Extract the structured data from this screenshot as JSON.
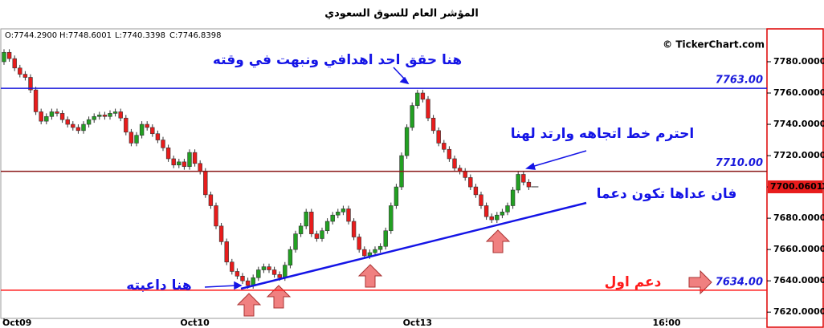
{
  "chart_data": {
    "type": "candlestick",
    "title": "المؤشر العام للسوق السعودي",
    "ohlc_info": [
      "O:7744.2900",
      "H:7748.6001",
      "L:7740.3398",
      "C:7746.8398"
    ],
    "copyright": "© TickerChart.com",
    "categories": [
      "Oct09",
      null,
      null,
      null,
      null,
      null,
      null,
      null,
      null,
      null,
      null,
      null,
      null,
      null,
      null,
      null,
      null,
      null,
      null,
      null,
      null,
      null,
      null,
      null,
      null,
      null,
      null,
      null,
      null,
      null,
      null,
      null,
      null,
      null,
      null,
      null,
      "Oct10",
      null,
      null,
      null,
      null,
      null,
      null,
      null,
      null,
      null,
      null,
      null,
      null,
      null,
      null,
      null,
      null,
      null,
      null,
      null,
      null,
      null,
      null,
      null,
      null,
      null,
      null,
      null,
      null,
      null,
      null,
      null,
      null,
      null,
      null,
      null,
      null,
      null,
      null,
      null,
      null,
      null,
      "Oct13",
      null,
      null,
      null,
      null,
      null,
      null,
      null,
      null,
      null,
      null,
      null,
      null,
      null,
      null,
      null,
      null,
      null,
      null,
      null,
      null,
      null,
      null,
      null,
      null,
      null,
      null,
      null,
      null,
      null,
      null,
      null,
      null,
      null,
      null,
      null,
      null,
      null,
      null,
      null,
      null,
      null,
      null,
      null,
      null,
      null,
      null,
      "16:00"
    ],
    "open": [
      7780,
      7786,
      7782,
      7776,
      7772,
      7770,
      7762,
      7748,
      7742,
      7745,
      7748,
      7747,
      7743,
      7740,
      7738,
      7736,
      7740,
      7743,
      7745,
      7746,
      7745,
      7747,
      7748,
      7744,
      7735,
      7728,
      7733,
      7740,
      7738,
      7734,
      7730,
      7725,
      7718,
      7714,
      7716,
      7713,
      7722,
      7715,
      7710,
      7695,
      7688,
      7675,
      7665,
      7652,
      7646,
      7643,
      7640,
      7637,
      7642,
      7647,
      7649,
      7647,
      7644,
      7642,
      7650,
      7660,
      7670,
      7675,
      7684,
      7670,
      7667,
      7672,
      7678,
      7682,
      7684,
      7686,
      7678,
      7668,
      7660,
      7656,
      7658,
      7660,
      7662,
      7672,
      7688,
      7700,
      7720,
      7738,
      7752,
      7760,
      7756,
      7744,
      7736,
      7728,
      7724,
      7718,
      7712,
      7710,
      7706,
      7700,
      7695,
      7688,
      7681,
      7679,
      7682,
      7684,
      7688,
      7698,
      7708,
      7703,
      null,
      null,
      null,
      null,
      null,
      null,
      null,
      null,
      null,
      null,
      null,
      null,
      null,
      null,
      null,
      null,
      null,
      null,
      null,
      null,
      null,
      null,
      null,
      null,
      null,
      null
    ],
    "high": [
      7788,
      7788,
      7784,
      7778,
      7774,
      7772,
      7764,
      7750,
      7747,
      7750,
      7750,
      7749,
      7745,
      7742,
      7740,
      7742,
      7745,
      7747,
      7748,
      7748,
      7749,
      7750,
      7750,
      7746,
      7737,
      7735,
      7742,
      7742,
      7740,
      7736,
      7732,
      7727,
      7720,
      7718,
      7718,
      7724,
      7724,
      7717,
      7712,
      7697,
      7690,
      7677,
      7667,
      7654,
      7648,
      7645,
      7642,
      7644,
      7649,
      7651,
      7651,
      7649,
      7646,
      7652,
      7662,
      7672,
      7677,
      7686,
      7686,
      7672,
      7674,
      7680,
      7684,
      7686,
      7688,
      7688,
      7680,
      7670,
      7662,
      7660,
      7662,
      7664,
      7674,
      7690,
      7702,
      7722,
      7740,
      7754,
      7762,
      7762,
      7758,
      7746,
      7738,
      7730,
      7726,
      7720,
      7714,
      7712,
      7708,
      7702,
      7697,
      7690,
      7683,
      7684,
      7686,
      7690,
      7700,
      7710,
      7710,
      7705,
      null,
      null,
      null,
      null,
      null,
      null,
      null,
      null,
      null,
      null,
      null,
      null,
      null,
      null,
      null,
      null,
      null,
      null,
      null,
      null,
      null,
      null,
      null,
      null,
      null,
      null
    ],
    "low": [
      7778,
      7780,
      7774,
      7770,
      7768,
      7760,
      7746,
      7740,
      7740,
      7743,
      7745,
      7741,
      7738,
      7736,
      7734,
      7734,
      7738,
      7741,
      7743,
      7743,
      7743,
      7745,
      7742,
      7733,
      7726,
      7726,
      7731,
      7736,
      7732,
      7728,
      7723,
      7716,
      7712,
      7712,
      7711,
      7711,
      7713,
      7708,
      7693,
      7686,
      7673,
      7663,
      7650,
      7644,
      7641,
      7638,
      7635,
      7635,
      7640,
      7645,
      7645,
      7642,
      7640,
      7640,
      7648,
      7658,
      7668,
      7673,
      7668,
      7665,
      7665,
      7670,
      7676,
      7680,
      7682,
      7676,
      7666,
      7658,
      7654,
      7654,
      7656,
      7658,
      7660,
      7670,
      7686,
      7698,
      7718,
      7736,
      7750,
      7754,
      7742,
      7734,
      7726,
      7722,
      7716,
      7710,
      7708,
      7704,
      7698,
      7693,
      7686,
      7679,
      7677,
      7677,
      7680,
      7682,
      7686,
      7696,
      7701,
      7698,
      null,
      null,
      null,
      null,
      null,
      null,
      null,
      null,
      null,
      null,
      null,
      null,
      null,
      null,
      null,
      null,
      null,
      null,
      null,
      null,
      null,
      null,
      null,
      null,
      null,
      null
    ],
    "close": [
      7786,
      7782,
      7776,
      7772,
      7770,
      7762,
      7748,
      7742,
      7745,
      7748,
      7747,
      7743,
      7740,
      7738,
      7736,
      7740,
      7743,
      7745,
      7746,
      7745,
      7747,
      7748,
      7744,
      7735,
      7728,
      7733,
      7740,
      7738,
      7734,
      7730,
      7725,
      7718,
      7714,
      7716,
      7713,
      7722,
      7715,
      7710,
      7695,
      7688,
      7675,
      7665,
      7652,
      7646,
      7643,
      7640,
      7637,
      7642,
      7647,
      7649,
      7647,
      7644,
      7642,
      7650,
      7660,
      7670,
      7675,
      7684,
      7670,
      7667,
      7672,
      7678,
      7682,
      7684,
      7686,
      7678,
      7668,
      7660,
      7656,
      7658,
      7660,
      7662,
      7672,
      7688,
      7700,
      7720,
      7738,
      7752,
      7760,
      7756,
      7744,
      7736,
      7728,
      7724,
      7718,
      7712,
      7710,
      7706,
      7700,
      7695,
      7688,
      7681,
      7679,
      7682,
      7684,
      7688,
      7698,
      7708,
      7703,
      7700,
      null,
      null,
      null,
      null,
      null,
      null,
      null,
      null,
      null,
      null,
      null,
      null,
      null,
      null,
      null,
      null,
      null,
      null,
      null,
      null,
      null,
      null,
      null,
      null,
      null,
      null
    ],
    "up_color": "#22a022",
    "down_color": "#e81c1c",
    "ylim": [
      7616,
      7801
    ],
    "yticks": [
      {
        "value": 7620,
        "label": "7620.0000"
      },
      {
        "value": 7640,
        "label": "7640.0000"
      },
      {
        "value": 7660,
        "label": "7660.0000"
      },
      {
        "value": 7680,
        "label": "7680.0000"
      },
      {
        "value": 7700,
        "label": "7700.0000"
      },
      {
        "value": 7720,
        "label": "7720.0000"
      },
      {
        "value": 7740,
        "label": "7740.0000"
      },
      {
        "value": 7760,
        "label": "7760.0000"
      },
      {
        "value": 7780,
        "label": "7780.0000"
      }
    ],
    "levels": [
      {
        "value": 7763,
        "label": "7763.00",
        "color": "#1a1adc"
      },
      {
        "value": 7710,
        "label": "7710.00",
        "color": "#8b1a1a"
      },
      {
        "value": 7634,
        "label": "7634.00",
        "color": "#ff1a1a"
      }
    ],
    "last_price": 7700.0601,
    "annotations": [
      "هنا حقق احد اهدافي ونبهت في وقته",
      "احترم خط اتجاهه وارتد لهنا",
      "فان عداها تكون دعما",
      "هنا داعبته",
      "دعم اول"
    ]
  }
}
